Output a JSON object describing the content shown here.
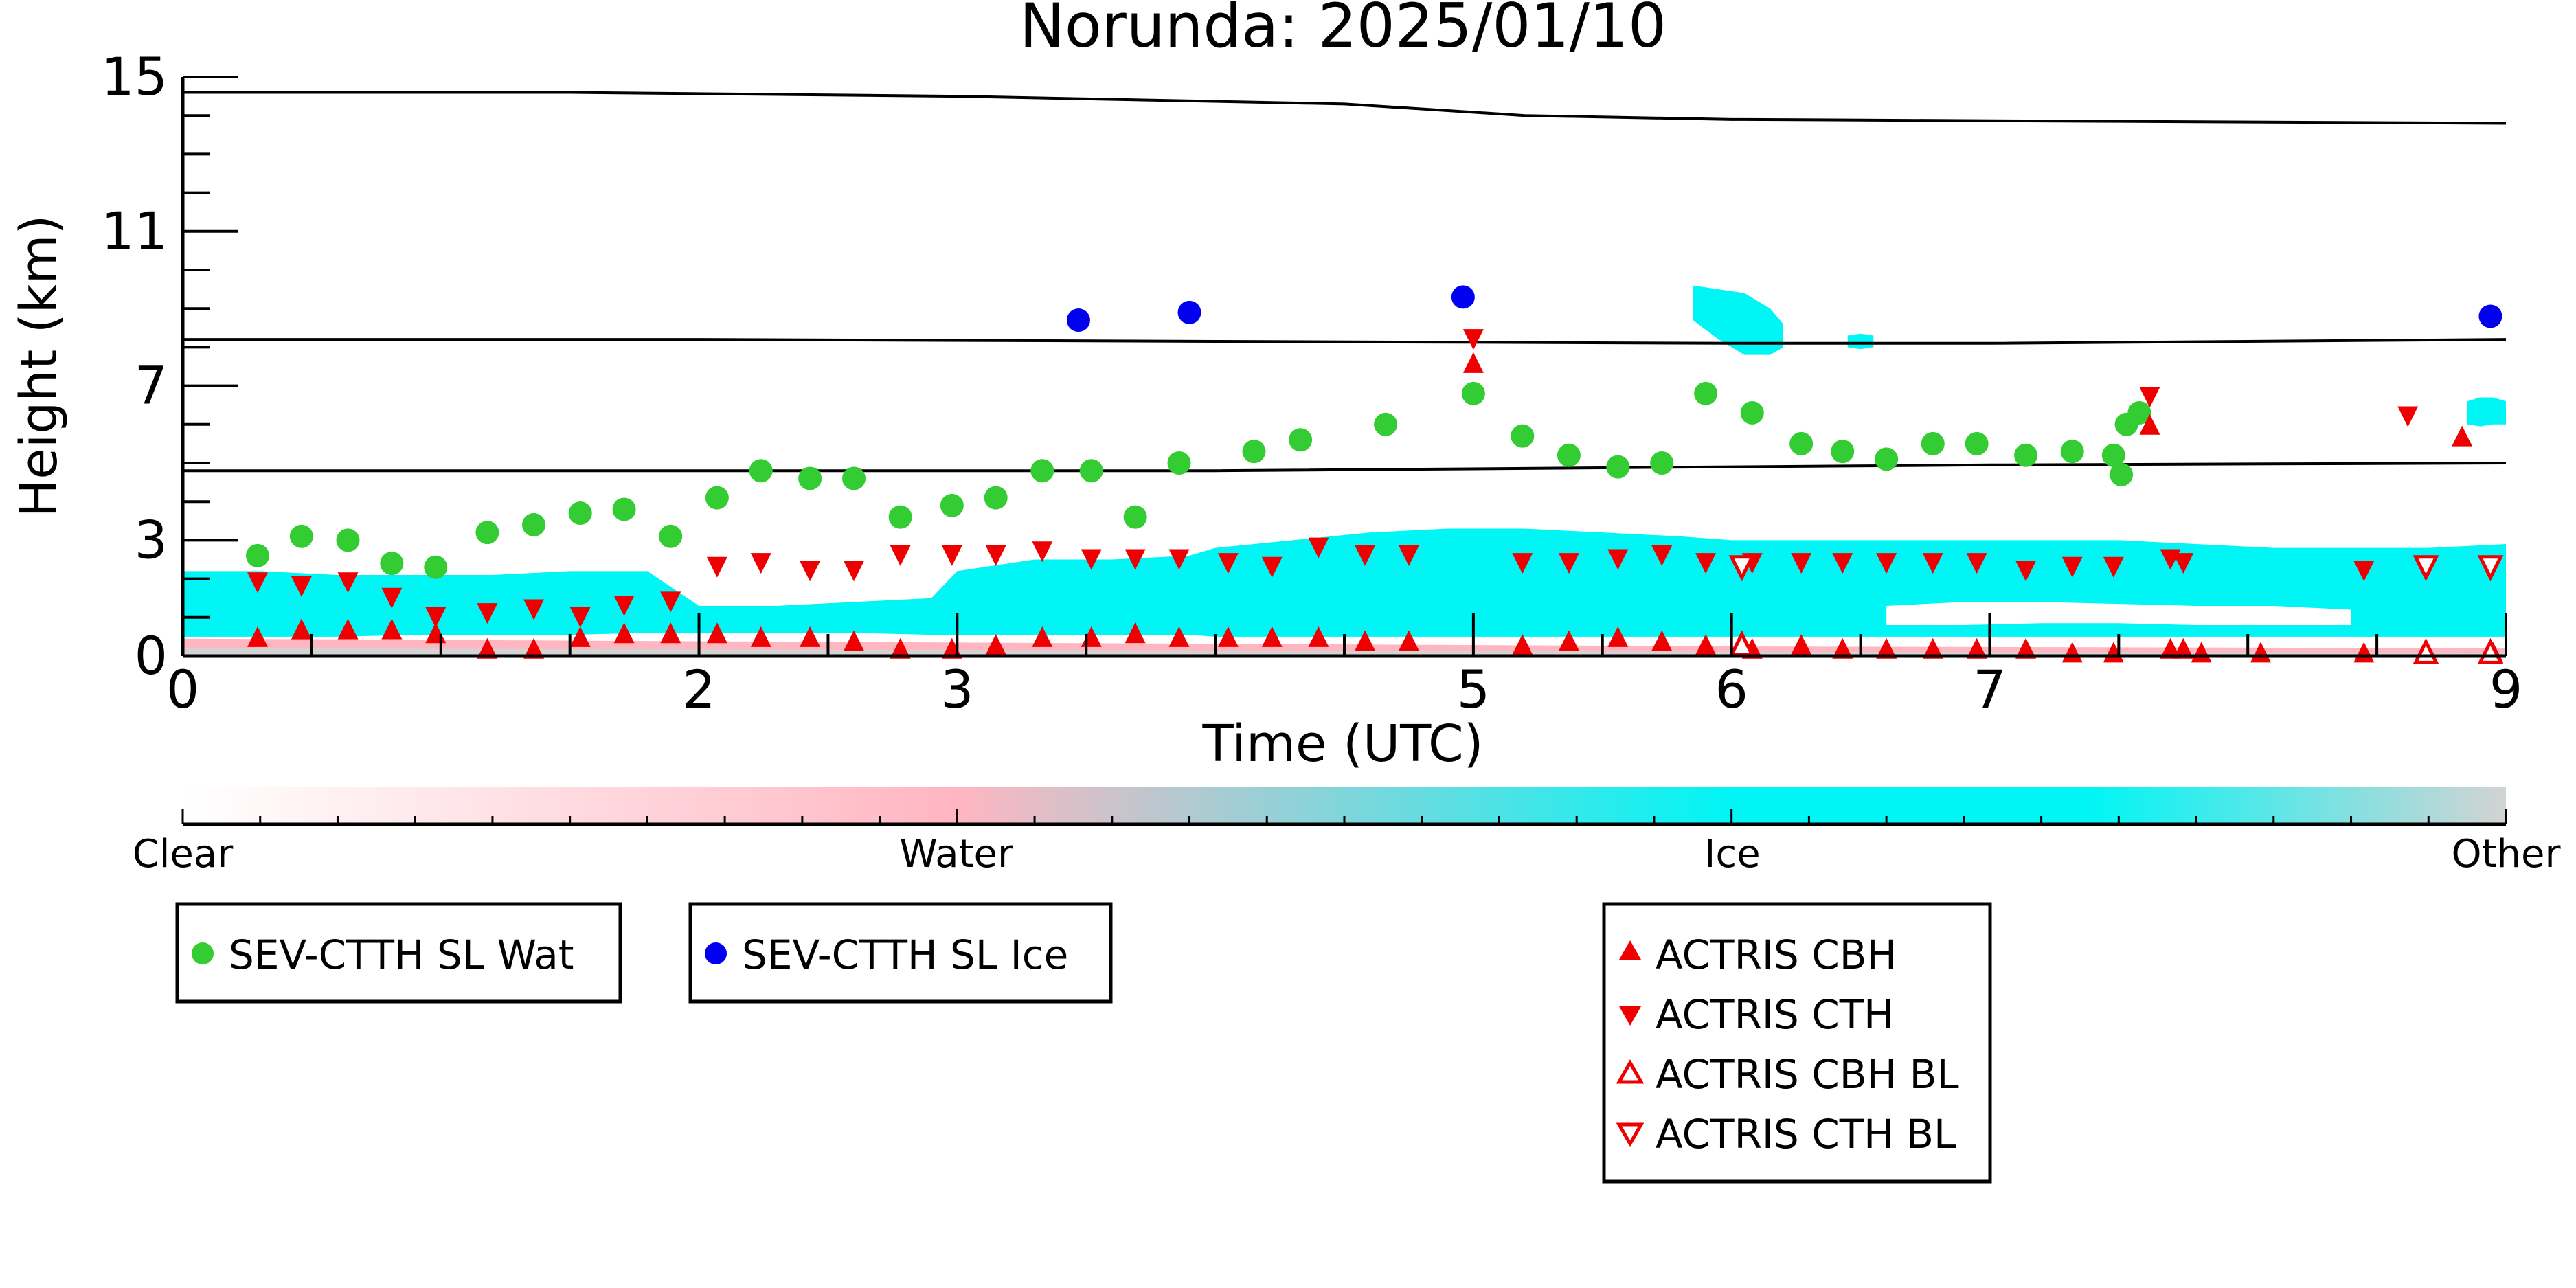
{
  "colors": {
    "sat_water": "#33cc33",
    "sat_ice": "#0000ee",
    "actris": "#ee0000",
    "cloud_ice": "#00f5f5",
    "cloud_water": "#ffb6c1",
    "other": "#d3d3d3",
    "axis": "#000000"
  },
  "chart_data": {
    "type": "scatter",
    "title": "Norunda: 2025/01/10",
    "xlabel": "Time (UTC)",
    "ylabel": "Height (km)",
    "xlim": [
      0,
      9
    ],
    "ylim": [
      0,
      15
    ],
    "xticks": [
      "0",
      "2",
      "3",
      "5",
      "6",
      "7",
      "9"
    ],
    "xtick_values": [
      0,
      2,
      3,
      5,
      6,
      7,
      9
    ],
    "yticks": [
      "0",
      "3",
      "7",
      "11",
      "15"
    ],
    "ytick_values": [
      0,
      3,
      7,
      11,
      15
    ],
    "grid": false,
    "reference_lines": [
      {
        "x": [
          0,
          1.5,
          3.0,
          4.5,
          5.2,
          6.0,
          7.5,
          9.0
        ],
        "y": [
          14.6,
          14.6,
          14.5,
          14.3,
          14.0,
          13.9,
          13.85,
          13.8
        ]
      },
      {
        "x": [
          0,
          2,
          4,
          6,
          7,
          9
        ],
        "y": [
          8.2,
          8.2,
          8.15,
          8.1,
          8.1,
          8.2
        ]
      },
      {
        "x": [
          0,
          2,
          4,
          6,
          7,
          9
        ],
        "y": [
          4.8,
          4.8,
          4.8,
          4.9,
          4.95,
          5.0
        ]
      }
    ],
    "cloudnet_ice_bands": [
      {
        "x": [
          0.0,
          0.3,
          0.6,
          0.9,
          1.2,
          1.5,
          1.8,
          2.0,
          2.3,
          2.6,
          2.9,
          3.0,
          3.3,
          3.6,
          3.9,
          4.0,
          4.3,
          4.6,
          4.9,
          5.2,
          5.5,
          5.8,
          6.0,
          6.3,
          6.6,
          6.9,
          7.2,
          7.5,
          7.8,
          8.1,
          8.4,
          8.7,
          9.0
        ],
        "bottom": [
          0.5,
          0.5,
          0.5,
          0.55,
          0.55,
          0.55,
          0.6,
          0.6,
          0.6,
          0.6,
          0.55,
          0.55,
          0.55,
          0.55,
          0.55,
          0.5,
          0.5,
          0.5,
          0.5,
          0.5,
          0.5,
          0.5,
          0.5,
          0.5,
          0.5,
          0.5,
          0.5,
          0.5,
          0.5,
          0.5,
          0.5,
          0.5,
          0.5
        ],
        "top": [
          2.2,
          2.2,
          2.1,
          2.1,
          2.1,
          2.2,
          2.2,
          1.3,
          1.3,
          1.4,
          1.5,
          2.2,
          2.5,
          2.5,
          2.6,
          2.8,
          3.0,
          3.2,
          3.3,
          3.3,
          3.2,
          3.1,
          3.0,
          3.0,
          3.0,
          3.0,
          3.0,
          3.0,
          2.9,
          2.8,
          2.8,
          2.8,
          2.9
        ]
      },
      {
        "x": [
          5.85,
          5.95,
          6.05,
          6.15,
          6.2
        ],
        "bottom": [
          8.7,
          8.2,
          7.8,
          7.8,
          8.0
        ],
        "top": [
          9.6,
          9.5,
          9.4,
          9.0,
          8.6
        ]
      },
      {
        "x": [
          8.85,
          8.9,
          8.95,
          9.0
        ],
        "bottom": [
          6.0,
          5.95,
          6.0,
          6.0
        ],
        "top": [
          6.6,
          6.7,
          6.7,
          6.6
        ]
      },
      {
        "x": [
          6.45,
          6.5,
          6.55
        ],
        "bottom": [
          8.0,
          7.95,
          8.0
        ],
        "top": [
          8.3,
          8.35,
          8.3
        ]
      }
    ],
    "cloudnet_gap": {
      "x": [
        6.6,
        6.9,
        7.2,
        7.5,
        7.8,
        8.1,
        8.4
      ],
      "bottom": [
        0.8,
        0.8,
        0.85,
        0.85,
        0.8,
        0.8,
        0.8
      ],
      "top": [
        1.3,
        1.4,
        1.4,
        1.35,
        1.3,
        1.3,
        1.2
      ]
    },
    "cloudnet_water_floor": {
      "x": [
        0,
        3,
        6,
        9
      ],
      "top": [
        0.45,
        0.35,
        0.25,
        0.2
      ]
    },
    "series": [
      {
        "name": "SEV-CTTH SL Wat",
        "marker": "circle",
        "x": [
          0.29,
          0.46,
          0.64,
          0.81,
          0.98,
          1.18,
          1.36,
          1.54,
          1.71,
          1.89,
          2.07,
          2.24,
          2.43,
          2.6,
          2.78,
          2.98,
          3.15,
          3.33,
          3.52,
          3.69,
          3.86,
          4.15,
          4.33,
          4.66,
          5.0,
          5.19,
          5.37,
          5.56,
          5.73,
          5.9,
          6.08,
          6.27,
          6.43,
          6.6,
          6.78,
          6.95,
          7.14,
          7.32,
          7.48,
          7.51,
          7.53,
          7.58
        ],
        "y": [
          2.6,
          3.1,
          3.0,
          2.4,
          2.3,
          3.2,
          3.4,
          3.7,
          3.8,
          3.1,
          4.1,
          4.8,
          4.6,
          4.6,
          3.6,
          3.9,
          4.1,
          4.8,
          4.8,
          3.6,
          5.0,
          5.3,
          5.6,
          6.0,
          6.8,
          5.7,
          5.2,
          4.9,
          5.0,
          6.8,
          6.3,
          5.5,
          5.3,
          5.1,
          5.5,
          5.5,
          5.2,
          5.3,
          5.2,
          4.7,
          6.0,
          6.3
        ]
      },
      {
        "name": "SEV-CTTH SL Ice",
        "marker": "circle",
        "x": [
          3.47,
          3.9,
          4.96,
          8.94
        ],
        "y": [
          8.7,
          8.9,
          9.3,
          8.8
        ]
      },
      {
        "name": "ACTRIS CBH",
        "marker": "triangle-up",
        "x": [
          0.29,
          0.46,
          0.64,
          0.81,
          0.98,
          1.18,
          1.36,
          1.54,
          1.71,
          1.89,
          2.07,
          2.24,
          2.43,
          2.6,
          2.78,
          2.98,
          3.15,
          3.33,
          3.52,
          3.69,
          3.86,
          4.05,
          4.22,
          4.4,
          4.58,
          4.75,
          5.0,
          5.19,
          5.37,
          5.56,
          5.73,
          5.9,
          6.08,
          6.27,
          6.43,
          6.6,
          6.78,
          6.95,
          7.14,
          7.32,
          7.48,
          7.62,
          7.7,
          7.75,
          7.82,
          8.05,
          8.45,
          8.83,
          8.95
        ],
        "y": [
          0.5,
          0.7,
          0.7,
          0.7,
          0.6,
          0.2,
          0.2,
          0.5,
          0.6,
          0.6,
          0.6,
          0.5,
          0.5,
          0.4,
          0.2,
          0.2,
          0.3,
          0.5,
          0.5,
          0.6,
          0.5,
          0.5,
          0.5,
          0.5,
          0.4,
          0.4,
          7.6,
          0.3,
          0.4,
          0.5,
          0.4,
          0.3,
          0.2,
          0.3,
          0.2,
          0.2,
          0.2,
          0.2,
          0.2,
          0.1,
          0.1,
          6.0,
          0.2,
          0.2,
          0.1,
          0.1,
          0.1,
          5.7,
          0.1
        ]
      },
      {
        "name": "ACTRIS CTH",
        "marker": "triangle-down",
        "x": [
          0.29,
          0.46,
          0.64,
          0.81,
          0.98,
          1.18,
          1.36,
          1.54,
          1.71,
          1.89,
          2.07,
          2.24,
          2.43,
          2.6,
          2.78,
          2.98,
          3.15,
          3.33,
          3.52,
          3.69,
          3.86,
          4.05,
          4.22,
          4.4,
          4.58,
          4.75,
          5.0,
          5.19,
          5.37,
          5.56,
          5.73,
          5.9,
          6.08,
          6.27,
          6.43,
          6.6,
          6.78,
          6.95,
          7.14,
          7.32,
          7.48,
          7.62,
          7.7,
          7.75,
          8.45,
          8.62
        ],
        "y": [
          1.9,
          1.8,
          1.9,
          1.5,
          1.0,
          1.1,
          1.2,
          1.0,
          1.3,
          1.4,
          2.3,
          2.4,
          2.2,
          2.2,
          2.6,
          2.6,
          2.6,
          2.7,
          2.5,
          2.5,
          2.5,
          2.4,
          2.3,
          2.8,
          2.6,
          2.6,
          8.2,
          2.4,
          2.4,
          2.5,
          2.6,
          2.4,
          2.4,
          2.4,
          2.4,
          2.4,
          2.4,
          2.4,
          2.2,
          2.3,
          2.3,
          6.7,
          2.5,
          2.4,
          2.2,
          6.2
        ]
      },
      {
        "name": "ACTRIS CBH BL",
        "marker": "triangle-up-open",
        "x": [
          6.04,
          8.69,
          8.94
        ],
        "y": [
          0.3,
          0.1,
          0.1
        ]
      },
      {
        "name": "ACTRIS CTH BL",
        "marker": "triangle-down-open",
        "x": [
          6.04,
          8.69,
          8.94
        ],
        "y": [
          2.3,
          2.3,
          2.3
        ]
      }
    ],
    "colorbar": {
      "labels": [
        "Clear",
        "Water",
        "Ice",
        "Other"
      ],
      "stops": [
        0,
        0.333,
        0.667,
        1
      ]
    },
    "legends": [
      {
        "entries": [
          "SEV-CTTH SL Wat"
        ]
      },
      {
        "entries": [
          "SEV-CTTH SL Ice"
        ]
      },
      {
        "entries": [
          "ACTRIS CBH",
          "ACTRIS CTH",
          "ACTRIS CBH BL",
          "ACTRIS CTH BL"
        ]
      }
    ]
  }
}
